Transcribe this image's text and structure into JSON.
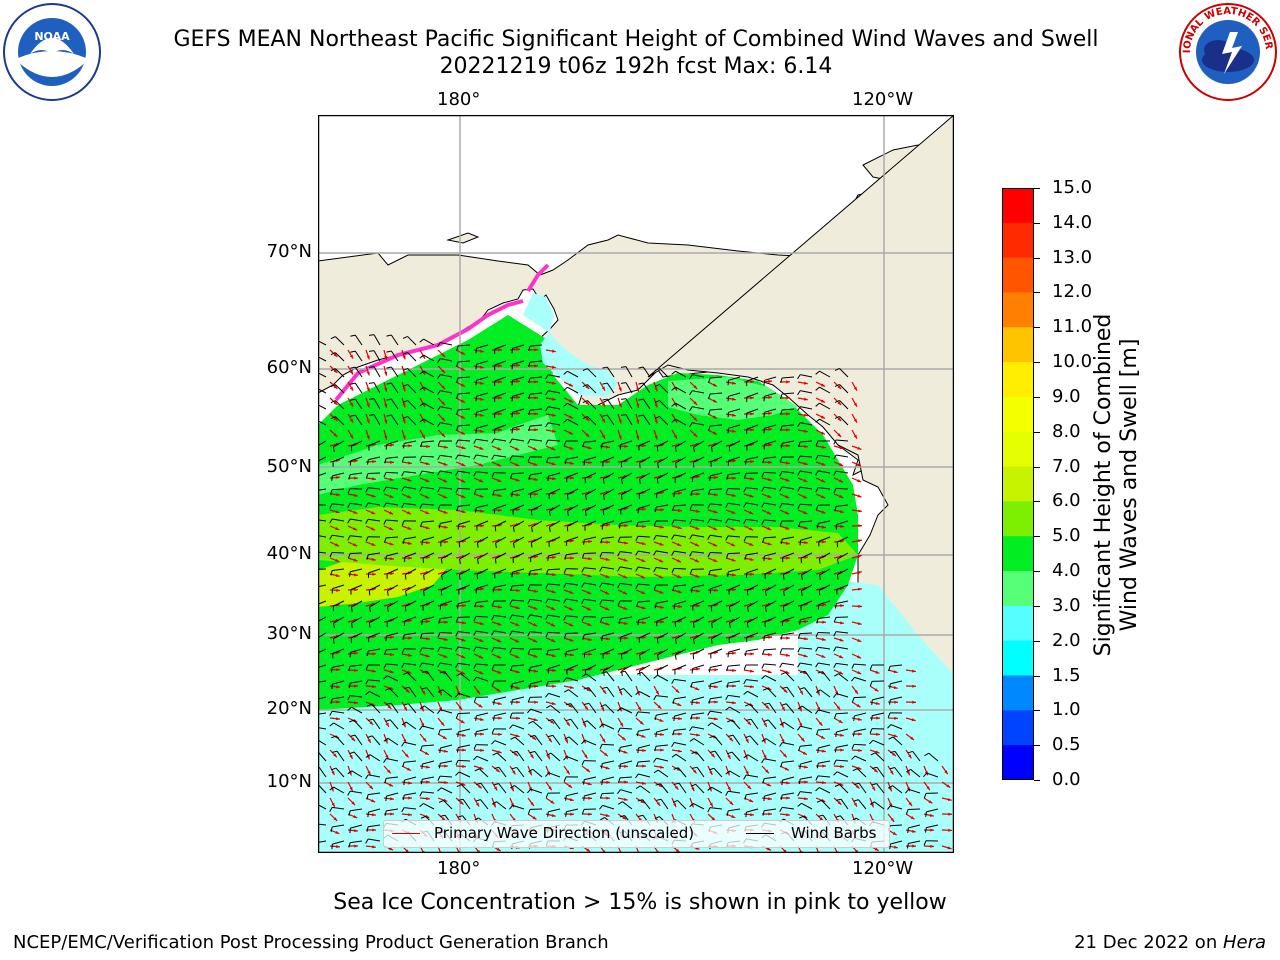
{
  "header": {
    "title_line1": "GEFS MEAN Northeast Pacific Significant Height of Combined Wind Waves and Swell",
    "title_line2": "20221219 t06z 192h fcst   Max: 6.14"
  },
  "logos": {
    "left": "NOAA",
    "right": "NATIONAL WEATHER SERVICE"
  },
  "map": {
    "lon_labels_top": [
      "180°",
      "120°W"
    ],
    "lon_labels_bottom": [
      "180°",
      "120°W"
    ],
    "lat_labels": [
      "70°N",
      "60°N",
      "50°N",
      "40°N",
      "30°N",
      "20°N",
      "10°N"
    ],
    "colors": {
      "land": "#efecdc",
      "ocean_low": "#a9fff9",
      "ocean_mid": "#00ee22",
      "ocean_high": "#c7f200",
      "wave_arrow": "#e00000",
      "wind_barb": "#000000",
      "ice_pink": "#ff33cc",
      "grid": "#aaaaaa"
    }
  },
  "legend": {
    "wave_label": "Primary Wave Direction (unscaled)",
    "wind_label": "Wind Barbs"
  },
  "colorbar": {
    "ticks": [
      "15.0",
      "14.0",
      "13.0",
      "12.0",
      "11.0",
      "10.0",
      "9.0",
      "8.0",
      "7.0",
      "6.0",
      "5.0",
      "4.0",
      "3.0",
      "2.0",
      "1.5",
      "1.0",
      "0.5",
      "0.0"
    ],
    "colors_top_to_bottom": [
      "#ff0000",
      "#ff2a00",
      "#ff5500",
      "#ff7f00",
      "#ffa200",
      "#ffc400",
      "#ffee00",
      "#f4ff00",
      "#e6ff00",
      "#c7f200",
      "#7cf000",
      "#00ee22",
      "#55ff77",
      "#aaffff",
      "#55ffff",
      "#00ffff",
      "#0088ff",
      "#0044ff",
      "#0000ff"
    ],
    "label_line1": "Significant Height of Combined",
    "label_line2": "Wind Waves and Swell [m]"
  },
  "notes": {
    "ice": "Sea Ice Concentration > 15% is shown in pink to yellow",
    "footer_left": "NCEP/EMC/Verification Post Processing Product Generation Branch",
    "footer_date": "21 Dec 2022 on ",
    "footer_host": "Hera"
  }
}
